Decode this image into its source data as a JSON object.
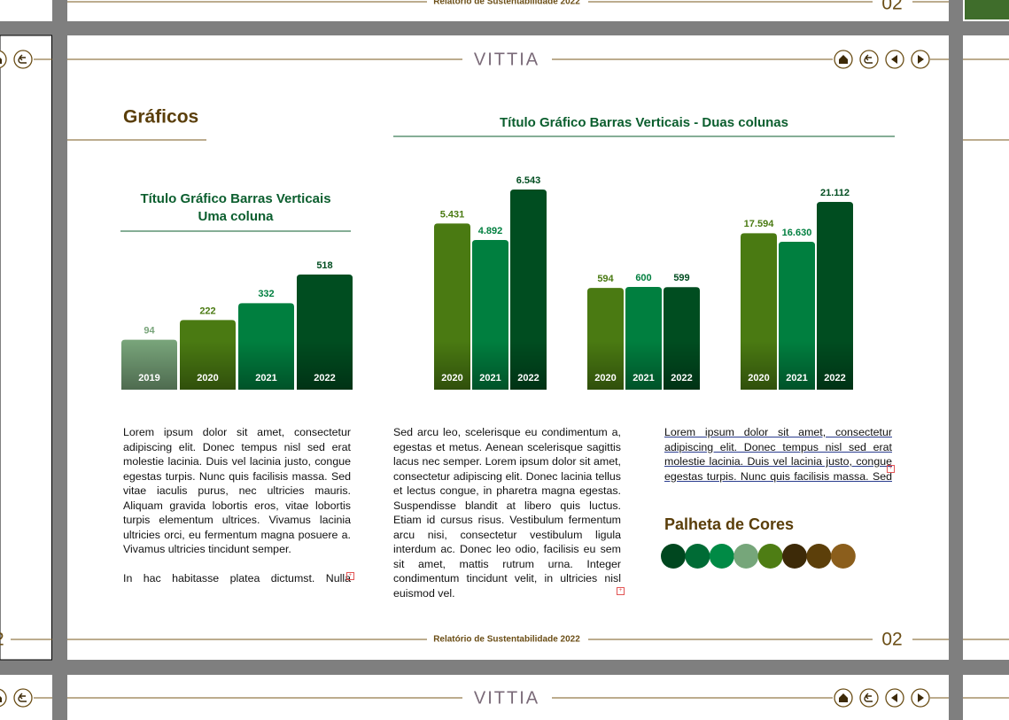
{
  "header": {
    "logo": "VITTIA"
  },
  "page": {
    "title": "Gráficos",
    "number": "02",
    "footer": "Relatório de Sustentabilidade 2022"
  },
  "chart_data": [
    {
      "type": "bar",
      "title_lines": [
        "Título Gráfico Barras Verticais",
        "Uma coluna"
      ],
      "categories": [
        "2019",
        "2020",
        "2021",
        "2022"
      ],
      "values": [
        94,
        222,
        332,
        518
      ],
      "colors": [
        "#78a47a",
        "#4a7a12",
        "#007f3f",
        "#004d20"
      ]
    },
    {
      "type": "grouped-bar",
      "title": "Título Gráfico Barras Verticais - Duas colunas",
      "colors": [
        "#4a7a12",
        "#007f3f",
        "#004d20"
      ],
      "groups": [
        {
          "categories": [
            "2020",
            "2021",
            "2022"
          ],
          "values": [
            5431,
            4892,
            6543
          ],
          "value_labels": [
            "5.431",
            "4.892",
            "6.543"
          ]
        },
        {
          "categories": [
            "2020",
            "2021",
            "2022"
          ],
          "values": [
            594,
            600,
            599
          ]
        },
        {
          "categories": [
            "2020",
            "2021",
            "2022"
          ],
          "values": [
            17594,
            16630,
            21112
          ],
          "value_labels": [
            "17.594",
            "16.630",
            "21.112"
          ]
        }
      ]
    }
  ],
  "columns": [
    {
      "paragraphs": [
        "Lorem ipsum dolor sit amet, consectetur adipiscing elit. Donec tempus nisl sed erat molestie lacinia. Duis vel lacinia justo, congue egestas turpis. Nunc quis facilisis massa. Sed vitae iaculis purus, nec ultricies mauris. Aliquam gravida lobortis eros, vitae lobortis turpis elementum ultrices. Vivamus lacinia ultricies orci, eu fermentum magna posuere a. Vivamus ultricies tincidunt semper.",
        "In hac habitasse platea dictumst. Nulla"
      ]
    },
    {
      "paragraphs": [
        "Sed arcu leo, scelerisque eu condimentum a, egestas et metus. Aenean scelerisque sagittis lacus nec semper. Lorem ipsum dolor sit amet, consectetur adipiscing elit. Donec lacinia tellus et lectus congue, in pharetra magna egestas. Suspendisse blandit at libero quis luctus. Etiam id cursus risus. Vestibulum fermentum arcu nisi, consectetur vestibulum ligula interdum ac. Donec leo odio, facilisis eu sem sit amet, mattis rutrum urna. Integer condimentum tincidunt velit, in ultricies nisl euismod vel."
      ]
    },
    {
      "paragraphs": [
        "Lorem ipsum dolor sit amet, consectetur adipiscing elit. Donec tempus nisl sed erat molestie lacinia. Duis vel lacinia justo, congue egestas turpis. Nunc quis facilisis massa. Sed"
      ]
    }
  ],
  "palette": {
    "title": "Palheta de Cores",
    "colors": [
      "#00471f",
      "#006b35",
      "#008a45",
      "#76a67a",
      "#4e7d14",
      "#3d2a08",
      "#5c3f0a",
      "#8b5e1c"
    ]
  }
}
